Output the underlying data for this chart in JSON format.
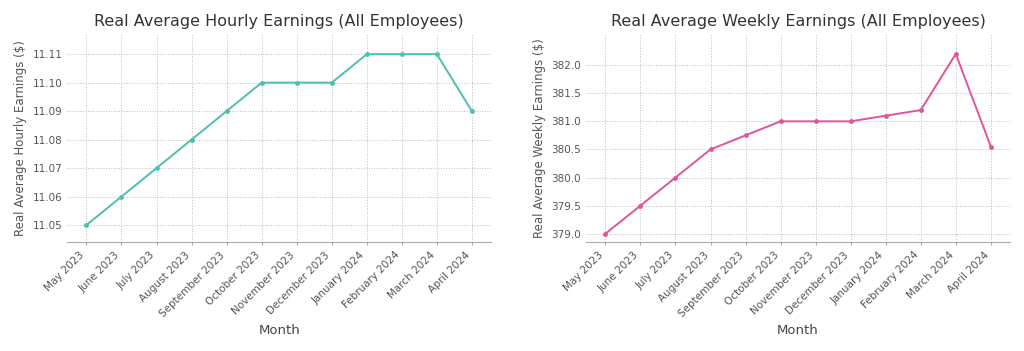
{
  "months": [
    "May 2023",
    "June 2023",
    "July 2023",
    "August 2023",
    "September 2023",
    "October 2023",
    "November 2023",
    "December 2023",
    "January 2024",
    "February 2024",
    "March 2024",
    "April 2024"
  ],
  "hourly_values": [
    11.05,
    11.06,
    11.07,
    11.08,
    11.09,
    11.1,
    11.1,
    11.1,
    11.11,
    11.11,
    11.11,
    11.09
  ],
  "weekly_values": [
    379.0,
    379.5,
    380.0,
    380.5,
    380.75,
    381.0,
    381.0,
    381.0,
    381.1,
    381.2,
    382.2,
    380.55
  ],
  "hourly_title": "Real Average Hourly Earnings (All Employees)",
  "weekly_title": "Real Average Weekly Earnings (All Employees)",
  "hourly_ylabel": "Real Average Hourly Earnings ($)",
  "weekly_ylabel": "Real Average Weekly Earnings ($)",
  "xlabel": "Month",
  "hourly_color": "#4DBFB0",
  "weekly_color": "#E0559A",
  "background_color": "#FFFFFF",
  "grid_color": "#BBBBBB",
  "hourly_ylim": [
    11.044,
    11.117
  ],
  "weekly_ylim": [
    378.85,
    382.55
  ],
  "hourly_yticks": [
    11.05,
    11.06,
    11.07,
    11.08,
    11.09,
    11.1,
    11.11
  ],
  "weekly_yticks": [
    379.0,
    379.5,
    380.0,
    380.5,
    381.0,
    381.5,
    382.0
  ],
  "title_fontsize": 11.5,
  "label_fontsize": 8.5,
  "tick_fontsize": 7.5
}
